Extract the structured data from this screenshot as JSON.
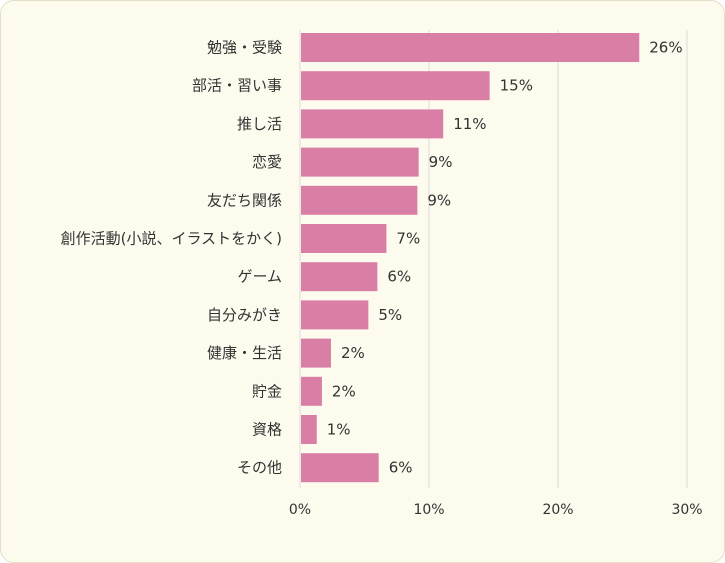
{
  "chart_data": {
    "type": "bar",
    "orientation": "horizontal",
    "categories": [
      "勉強・受験",
      "部活・習い事",
      "推し活",
      "恋愛",
      "友だち関係",
      "創作活動(小説、イラストをかく)",
      "ゲーム",
      "自分みがき",
      "健康・生活",
      "貯金",
      "資格",
      "その他"
    ],
    "values": [
      26.3,
      14.7,
      11.1,
      9.2,
      9.1,
      6.7,
      6.0,
      5.3,
      2.4,
      1.7,
      1.3,
      6.1
    ],
    "value_labels": [
      "26%",
      "15%",
      "11%",
      "9%",
      "9%",
      "7%",
      "6%",
      "5%",
      "2%",
      "2%",
      "1%",
      "6%"
    ],
    "xlim": [
      0,
      30
    ],
    "xticks": [
      0,
      10,
      20,
      30
    ],
    "xtick_labels": [
      "0%",
      "10%",
      "20%",
      "30%"
    ],
    "grid": true,
    "colors": {
      "bar": "#d97fa5",
      "grid": "#d9d9d9",
      "panel_bg": "#fdfbee"
    }
  }
}
